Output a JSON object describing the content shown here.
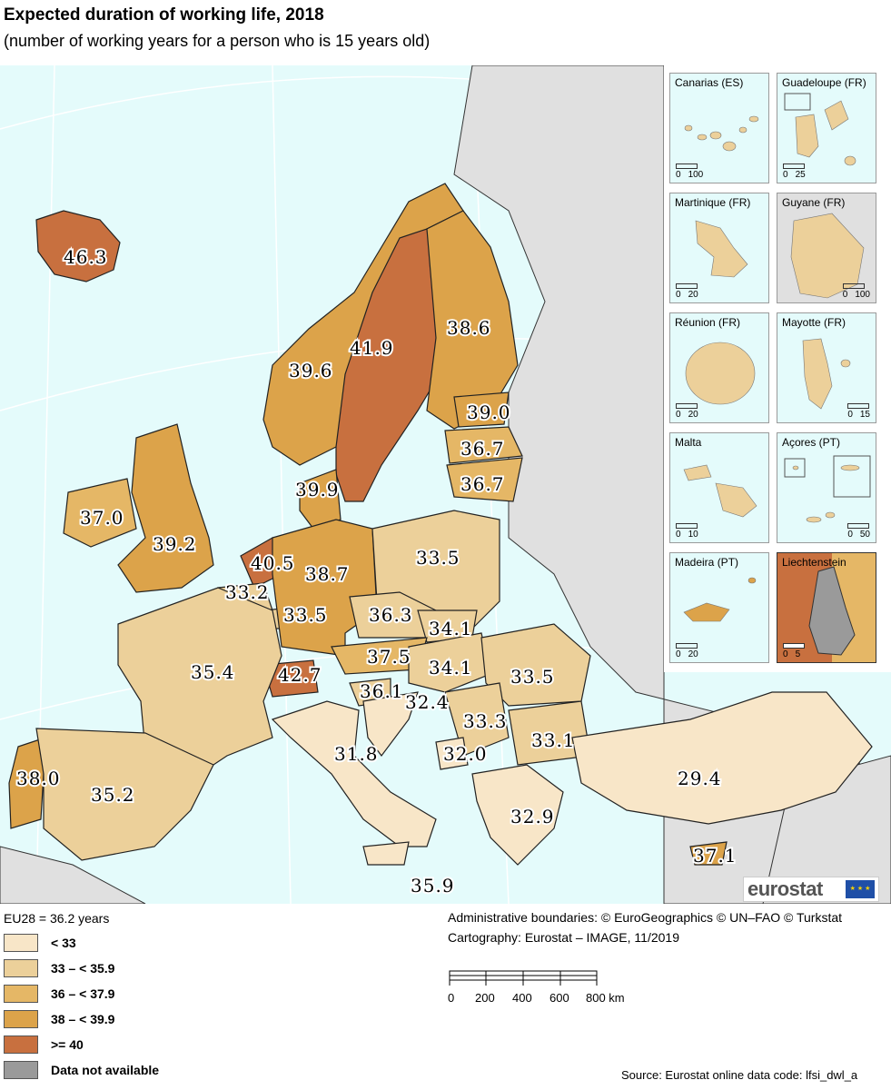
{
  "title": "Expected duration of working life, 2018",
  "subtitle": "(number of working years for a person who is 15 years old)",
  "colors": {
    "sea": "#e4fbfb",
    "non_eu_land": "#e0e0e0",
    "lt33": "#f8e6c8",
    "b33_359": "#ecd09a",
    "b36_379": "#e5b766",
    "b38_399": "#dca34a",
    "ge40": "#c8703f",
    "na": "#9a9a9a"
  },
  "map_values": {
    "iceland": "46.3",
    "sweden": "41.9",
    "finland": "38.6",
    "norway": "39.6",
    "estonia": "39.0",
    "latvia": "36.7",
    "lithuania": "36.7",
    "denmark": "39.9",
    "ireland": "37.0",
    "uk": "39.2",
    "netherlands": "40.5",
    "belgium": "33.2",
    "luxembourg": "33.5",
    "germany": "38.7",
    "poland": "33.5",
    "czechia": "36.3",
    "slovakia": "34.1",
    "hungary": "34.1",
    "austria": "37.5",
    "switzerland": "42.7",
    "france": "35.4",
    "slovenia": "36.1",
    "croatia": "32.4",
    "romania": "33.5",
    "serbia": "33.3",
    "bulgaria": "33.1",
    "montenegro": "32.0",
    "italy": "31.8",
    "portugal": "38.0",
    "spain": "35.2",
    "greece": "32.9",
    "turkey": "29.4",
    "cyprus": "37.1",
    "malta": "35.9"
  },
  "insets": [
    {
      "label": "Canarias (ES)",
      "scale": [
        "0",
        "100"
      ]
    },
    {
      "label": "Guadeloupe (FR)",
      "scale": [
        "0",
        "25"
      ]
    },
    {
      "label": "Martinique (FR)",
      "scale": [
        "0",
        "20"
      ]
    },
    {
      "label": "Guyane (FR)",
      "scale": [
        "0",
        "100"
      ]
    },
    {
      "label": "Réunion (FR)",
      "scale": [
        "0",
        "20"
      ]
    },
    {
      "label": "Mayotte (FR)",
      "scale": [
        "0",
        "15"
      ]
    },
    {
      "label": "Malta",
      "scale": [
        "0",
        "10"
      ]
    },
    {
      "label": "Açores (PT)",
      "scale": [
        "0",
        "50"
      ]
    },
    {
      "label": "Madeira (PT)",
      "scale": [
        "0",
        "20"
      ]
    },
    {
      "label": "Liechtenstein",
      "scale": [
        "0",
        "5"
      ]
    }
  ],
  "eu_average": "EU28 = 36.2 years",
  "legend": [
    {
      "label": "< 33",
      "color": "#f8e6c8"
    },
    {
      "label": "33 – < 35.9",
      "color": "#ecd09a"
    },
    {
      "label": "36 – < 37.9",
      "color": "#e5b766"
    },
    {
      "label": "38 – < 39.9",
      "color": "#dca34a"
    },
    {
      "label": ">= 40",
      "color": "#c8703f"
    },
    {
      "label": "Data not available",
      "color": "#9a9a9a"
    }
  ],
  "credits": {
    "boundaries": "Administrative boundaries: © EuroGeographics © UN–FAO © Turkstat",
    "cartography": "Cartography: Eurostat – IMAGE, 11/2019"
  },
  "km_scale": {
    "ticks": [
      "0",
      "200",
      "400",
      "600",
      "800 km"
    ]
  },
  "logo": {
    "text": "eurostat",
    "flag_text": "★ ★ ★"
  },
  "source": "Source: Eurostat online data code: lfsi_dwl_a"
}
